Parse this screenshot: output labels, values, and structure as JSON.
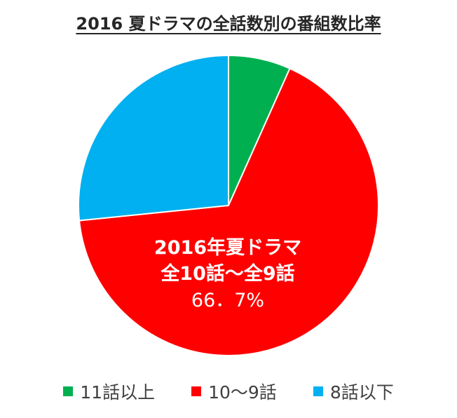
{
  "chart_data": {
    "type": "pie",
    "title": "2016 夏ドラマの全話数別の番組数比率",
    "categories": [
      "11話以上",
      "10～9話",
      "8話以下"
    ],
    "values": [
      6.7,
      66.7,
      26.6
    ],
    "colors": [
      "#00b050",
      "#ff0000",
      "#00b0f0"
    ],
    "annotation": {
      "lines": [
        "2016年夏ドラマ",
        "全10話～全9話",
        "66．7%"
      ]
    },
    "legend_position": "bottom"
  }
}
